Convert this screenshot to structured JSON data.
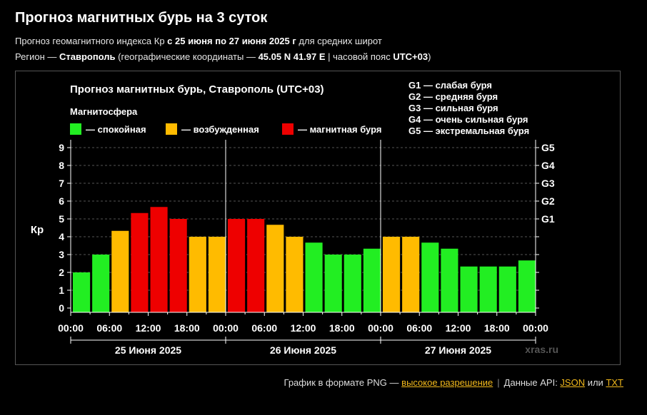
{
  "header": {
    "title": "Прогноз магнитных бурь на 3 суток",
    "line1_prefix": "Прогноз геомагнитного индекса Кр ",
    "line1_bold": "с 25 июня по 27 июня 2025 г",
    "line1_suffix": " для средних широт",
    "line2_prefix": "Регион — ",
    "line2_city": "Ставрополь",
    "line2_coords_prefix": " (географические координаты — ",
    "line2_coords": "45.05 N 41.97 E",
    "line2_tz_prefix": " | часовой пояс ",
    "line2_tz": "UTC+03",
    "line2_suffix": ")"
  },
  "chart_data": {
    "type": "bar",
    "title": "Прогноз магнитных бурь, Ставрополь (UTC+03)",
    "ylabel": "Кр",
    "ylim": [
      0,
      9
    ],
    "yticks": [
      "0",
      "1",
      "2",
      "3",
      "4",
      "5",
      "6",
      "7",
      "8",
      "9"
    ],
    "right_ticks": [
      {
        "label": "G1",
        "value": 5
      },
      {
        "label": "G2",
        "value": 6
      },
      {
        "label": "G3",
        "value": 7
      },
      {
        "label": "G4",
        "value": 8
      },
      {
        "label": "G5",
        "value": 9
      }
    ],
    "grid": true,
    "xtick_labels": [
      "00:00",
      "06:00",
      "12:00",
      "18:00",
      "00:00",
      "06:00",
      "12:00",
      "18:00",
      "00:00",
      "06:00",
      "12:00",
      "18:00",
      "00:00"
    ],
    "days": [
      "25 Июня 2025",
      "26 Июня 2025",
      "27 Июня 2025"
    ],
    "values": [
      2.0,
      3.0,
      4.33,
      5.33,
      5.67,
      5.0,
      4.0,
      4.0,
      5.0,
      5.0,
      4.67,
      4.0,
      3.67,
      3.0,
      3.0,
      3.33,
      4.0,
      4.0,
      3.67,
      3.33,
      2.33,
      2.33,
      2.33,
      2.67
    ],
    "legend_title": "Магнитосфера",
    "legend": [
      {
        "label": "— спокойная",
        "color": "#22ee22"
      },
      {
        "label": "— возбужденная",
        "color": "#ffbb00"
      },
      {
        "label": "— магнитная буря",
        "color": "#ee0000"
      }
    ],
    "gscale": [
      "G1 — слабая буря",
      "G2 — средняя буря",
      "G3 — сильная буря",
      "G4 — очень сильная буря",
      "G5 — экстремальная буря"
    ],
    "watermark": "xras.ru"
  },
  "footer": {
    "png_text": "График в формате PNG — ",
    "png_link": "высокое разрешение",
    "api_text": "Данные API: ",
    "json_link": "JSON",
    "or_text": " или ",
    "txt_link": "TXT"
  }
}
